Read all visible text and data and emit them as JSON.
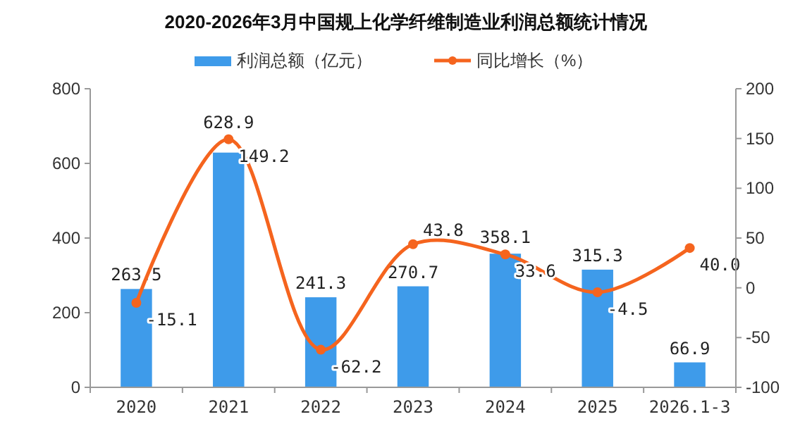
{
  "chart_data": {
    "type": "bar",
    "title": "2020-2026年3月中国规上化学纤维制造业利润总额统计情况",
    "categories": [
      "2020",
      "2021",
      "2022",
      "2023",
      "2024",
      "2025",
      "2026.1-3"
    ],
    "series": [
      {
        "name": "利润总额（亿元）",
        "color": "#3e9bea",
        "values": [
          263.5,
          628.9,
          241.3,
          270.7,
          358.1,
          315.3,
          66.9
        ],
        "value_labels": [
          "263.5",
          "628.9",
          "241.3",
          "270.7",
          "358.1",
          "315.3",
          "66.9"
        ]
      },
      {
        "name": "同比增长（%）",
        "type": "line",
        "axis": "y2",
        "color": "#f5641e",
        "marker": "circle",
        "values": [
          -15.1,
          149.2,
          -62.2,
          43.8,
          33.6,
          -4.5,
          40.0
        ],
        "value_labels": [
          "-15.1",
          "149.2",
          "-62.2",
          "43.8",
          "33.6",
          "-4.5",
          "40.0"
        ]
      }
    ],
    "ylim": [
      0,
      800
    ],
    "yticks": [
      0,
      200,
      400,
      600,
      800
    ],
    "y2lim": [
      -100,
      200
    ],
    "y2ticks": [
      -100,
      -50,
      0,
      50,
      100,
      150,
      200
    ],
    "legend": "top",
    "grid": false
  }
}
